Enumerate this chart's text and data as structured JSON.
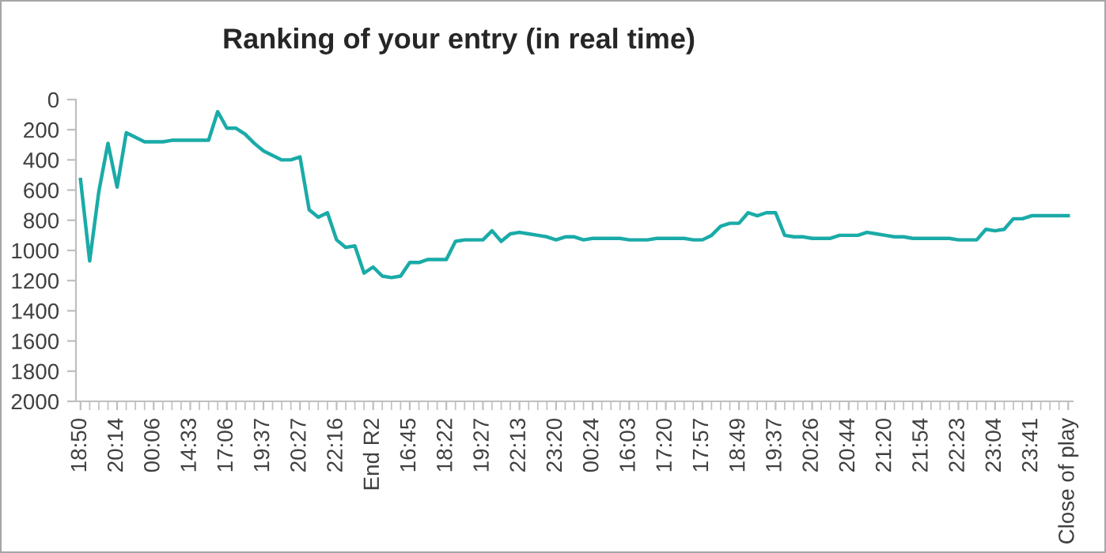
{
  "chart_data": {
    "type": "line",
    "title": "Ranking of your entry (in real time)",
    "categories": [
      "18:50",
      null,
      null,
      null,
      "20:14",
      null,
      null,
      null,
      "00:06",
      null,
      null,
      null,
      "14:33",
      null,
      null,
      null,
      "17:06",
      null,
      null,
      null,
      "19:37",
      null,
      null,
      null,
      "20:27",
      null,
      null,
      null,
      "22:16",
      null,
      null,
      null,
      "End R2",
      null,
      null,
      null,
      "16:45",
      null,
      null,
      null,
      "18:22",
      null,
      null,
      null,
      "19:27",
      null,
      null,
      null,
      "22:13",
      null,
      null,
      null,
      "23:20",
      null,
      null,
      null,
      "00:24",
      null,
      null,
      null,
      "16:03",
      null,
      null,
      null,
      "17:20",
      null,
      null,
      null,
      "17:57",
      null,
      null,
      null,
      "18:49",
      null,
      null,
      null,
      "19:37",
      null,
      null,
      null,
      "20:26",
      null,
      null,
      null,
      "20:44",
      null,
      null,
      null,
      "21:20",
      null,
      null,
      null,
      "21:54",
      null,
      null,
      null,
      "22:23",
      null,
      null,
      null,
      "23:04",
      null,
      null,
      null,
      "23:41",
      null,
      null,
      null,
      "Close of play"
    ],
    "series": [
      {
        "color": "#1aaba8",
        "values": [
          530,
          1070,
          610,
          290,
          580,
          220,
          250,
          280,
          280,
          280,
          270,
          270,
          270,
          270,
          270,
          80,
          190,
          190,
          230,
          290,
          340,
          370,
          400,
          400,
          380,
          730,
          780,
          750,
          930,
          980,
          970,
          1150,
          1110,
          1170,
          1180,
          1170,
          1080,
          1080,
          1060,
          1060,
          1060,
          940,
          930,
          930,
          930,
          870,
          940,
          890,
          880,
          890,
          900,
          910,
          930,
          910,
          910,
          930,
          920,
          920,
          920,
          920,
          930,
          930,
          930,
          920,
          920,
          920,
          920,
          930,
          930,
          900,
          840,
          820,
          820,
          750,
          770,
          750,
          750,
          900,
          910,
          910,
          920,
          920,
          920,
          900,
          900,
          900,
          880,
          890,
          900,
          910,
          910,
          920,
          920,
          920,
          920,
          920,
          930,
          930,
          930,
          860,
          870,
          860,
          790,
          790,
          770,
          770,
          770,
          770,
          770
        ]
      }
    ],
    "ylim": [
      2000,
      0
    ],
    "yticks": [
      0,
      200,
      400,
      600,
      800,
      1000,
      1200,
      1400,
      1600,
      1800,
      2000
    ],
    "grid": false,
    "marker": "none",
    "line_style": "solid"
  }
}
